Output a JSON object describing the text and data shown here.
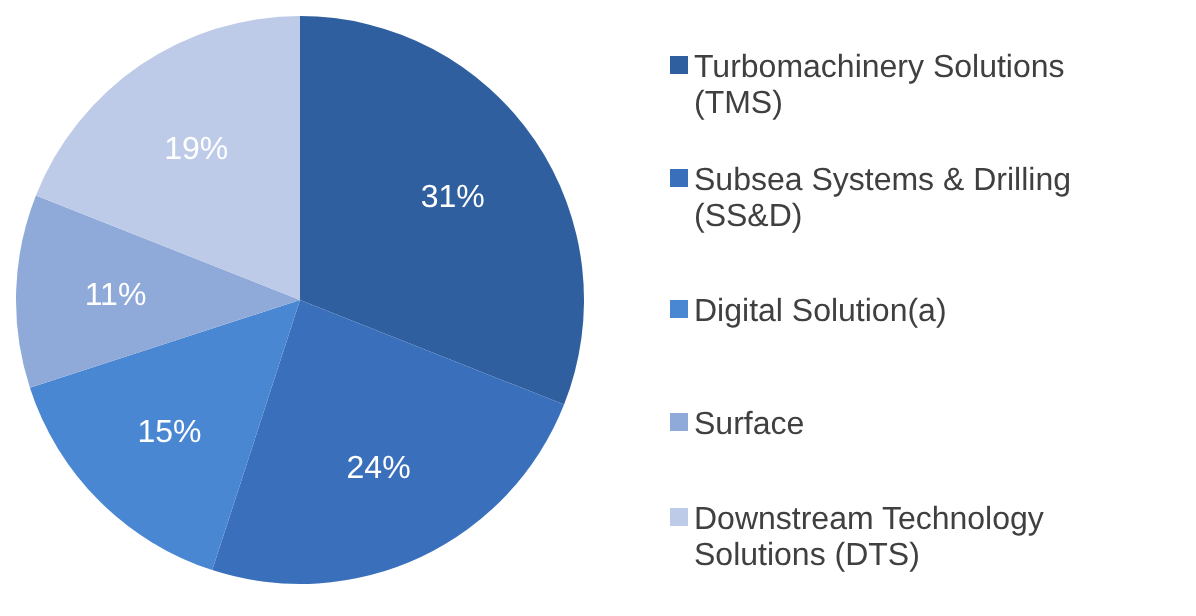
{
  "chart_data": {
    "type": "pie",
    "categories": [
      "Turbomachinery Solutions (TMS)",
      "Subsea Systems & Drilling (SS&D)",
      "Digital Solution(a)",
      "Surface",
      "Downstream Technology Solutions (DTS)"
    ],
    "values": [
      31,
      24,
      15,
      11,
      19
    ],
    "colors": [
      "#2f5f9e",
      "#3a70bb",
      "#4a87d2",
      "#8faad9",
      "#bdcbe9"
    ],
    "value_labels": [
      "31%",
      "24%",
      "15%",
      "11%",
      "19%"
    ],
    "legend": "right"
  }
}
